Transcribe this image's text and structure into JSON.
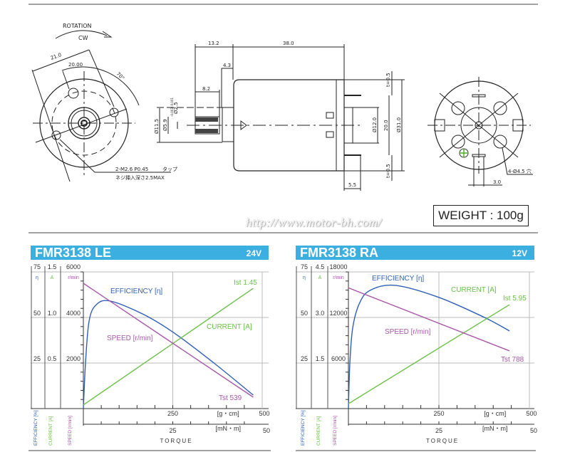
{
  "drawing": {
    "rotation_label": "ROTATION",
    "direction_label": "CW",
    "dim_21": "21.0",
    "dim_20_00": "20.00",
    "angle_70": "70°",
    "tap_note": "2-M2.6 P0.45",
    "tap_word": "タップ",
    "depth_note": "ネジ挿入深さ2.5MAX",
    "dim_13_2": "13.2",
    "dim_38": "38.0",
    "dim_4_3": "4.3",
    "dim_8_2": "8.2",
    "dim_d2_5": "Ø2.5",
    "dim_d2_5_tol": "-0.003 -0.001",
    "dim_d5_9": "Ø5.9",
    "dim_d11_5": "Ø11.5",
    "dim_d12": "Ø12.0",
    "dim_20": "20.0",
    "dim_d31": "Ø31.0",
    "dim_t_top": "t=0.5",
    "dim_t_bottom": "t=0.5",
    "dim_5_5": "5.5",
    "hole_note": "4-Ø4.5 穴",
    "dim_3_0": "3.0"
  },
  "weight_label": "WEIGHT : 100g",
  "url_watermark": "http://www.motor-bh.com/",
  "colors": {
    "header": "#3bb0e0",
    "efficiency": "#2f5fb5",
    "current": "#6cc04a",
    "speed": "#a857a8"
  },
  "chart_data": [
    {
      "type": "line",
      "title": "FMR3138 LE",
      "voltage": "24V",
      "xlabel": "TORQUE",
      "x_unit": "[g・cm]",
      "x2_unit": "[mN・m]",
      "xlim": [
        0,
        500
      ],
      "x2lim": [
        0,
        50
      ],
      "x_ticks": [
        "250",
        "500"
      ],
      "x2_ticks": [
        "25",
        "50"
      ],
      "grid": true,
      "axes": [
        {
          "name": "η",
          "label": "EFFICIENCY [%]",
          "ylim": [
            0,
            75
          ],
          "ticks": [
            "75",
            "50",
            "25"
          ]
        },
        {
          "name": "A",
          "label": "CURRENT [A]",
          "ylim": [
            0,
            1.5
          ],
          "ticks": [
            "1.5",
            "1.0",
            "0.5"
          ]
        },
        {
          "name": "r/min",
          "label": "SPEED [r/min]",
          "ylim": [
            0,
            6000
          ],
          "ticks": [
            "6000",
            "4000",
            "2000"
          ]
        }
      ],
      "series": [
        {
          "name": "EFFICIENCY [η]",
          "axis": 0,
          "x": [
            0,
            6,
            16,
            36,
            75,
            165,
            250,
            365,
            475
          ],
          "y": [
            0,
            25,
            48,
            57,
            59,
            52,
            42,
            25,
            7.4
          ]
        },
        {
          "name": "CURRENT [A]",
          "axis": 1,
          "x": [
            0,
            475
          ],
          "y": [
            0.04,
            1.32
          ]
        },
        {
          "name": "SPEED [r/min]",
          "axis": 2,
          "x": [
            0,
            475
          ],
          "y": [
            5500,
            500
          ]
        }
      ],
      "annotations": {
        "current_end": "Ist 1.45",
        "speed_end": "Tst 539"
      }
    },
    {
      "type": "line",
      "title": "FMR3138 RA",
      "voltage": "12V",
      "xlabel": "TORQUE",
      "x_unit": "[g・cm]",
      "x2_unit": "[mN・m]",
      "xlim": [
        0,
        500
      ],
      "x2lim": [
        0,
        50
      ],
      "x_ticks": [
        "250",
        "500"
      ],
      "x2_ticks": [
        "25",
        "50"
      ],
      "grid": true,
      "axes": [
        {
          "name": "η",
          "label": "EFFICIENCY [%]",
          "ylim": [
            0,
            75
          ],
          "ticks": [
            "75",
            "50",
            "25"
          ]
        },
        {
          "name": "A",
          "label": "CURRENT [A]",
          "ylim": [
            0,
            4.5
          ],
          "ticks": [
            "4.5",
            "3.0",
            "1.5"
          ]
        },
        {
          "name": "r/min",
          "label": "SPEED [r/min]",
          "ylim": [
            0,
            18000
          ],
          "ticks": [
            "18000",
            "12000",
            "6000"
          ]
        }
      ],
      "series": [
        {
          "name": "EFFICIENCY [η]",
          "axis": 0,
          "x": [
            0,
            4,
            12,
            31,
            61,
            130,
            250,
            376,
            445
          ],
          "y": [
            0,
            25,
            44.5,
            58,
            65,
            67.6,
            61,
            50,
            42.6
          ]
        },
        {
          "name": "CURRENT [A]",
          "axis": 1,
          "x": [
            0,
            445
          ],
          "y": [
            0.16,
            3.42
          ]
        },
        {
          "name": "SPEED [r/min]",
          "axis": 2,
          "x": [
            0,
            445
          ],
          "y": [
            15900,
            7600
          ]
        }
      ],
      "annotations": {
        "current_end": "Ist 5.95",
        "speed_end": "Tst 788"
      }
    }
  ]
}
